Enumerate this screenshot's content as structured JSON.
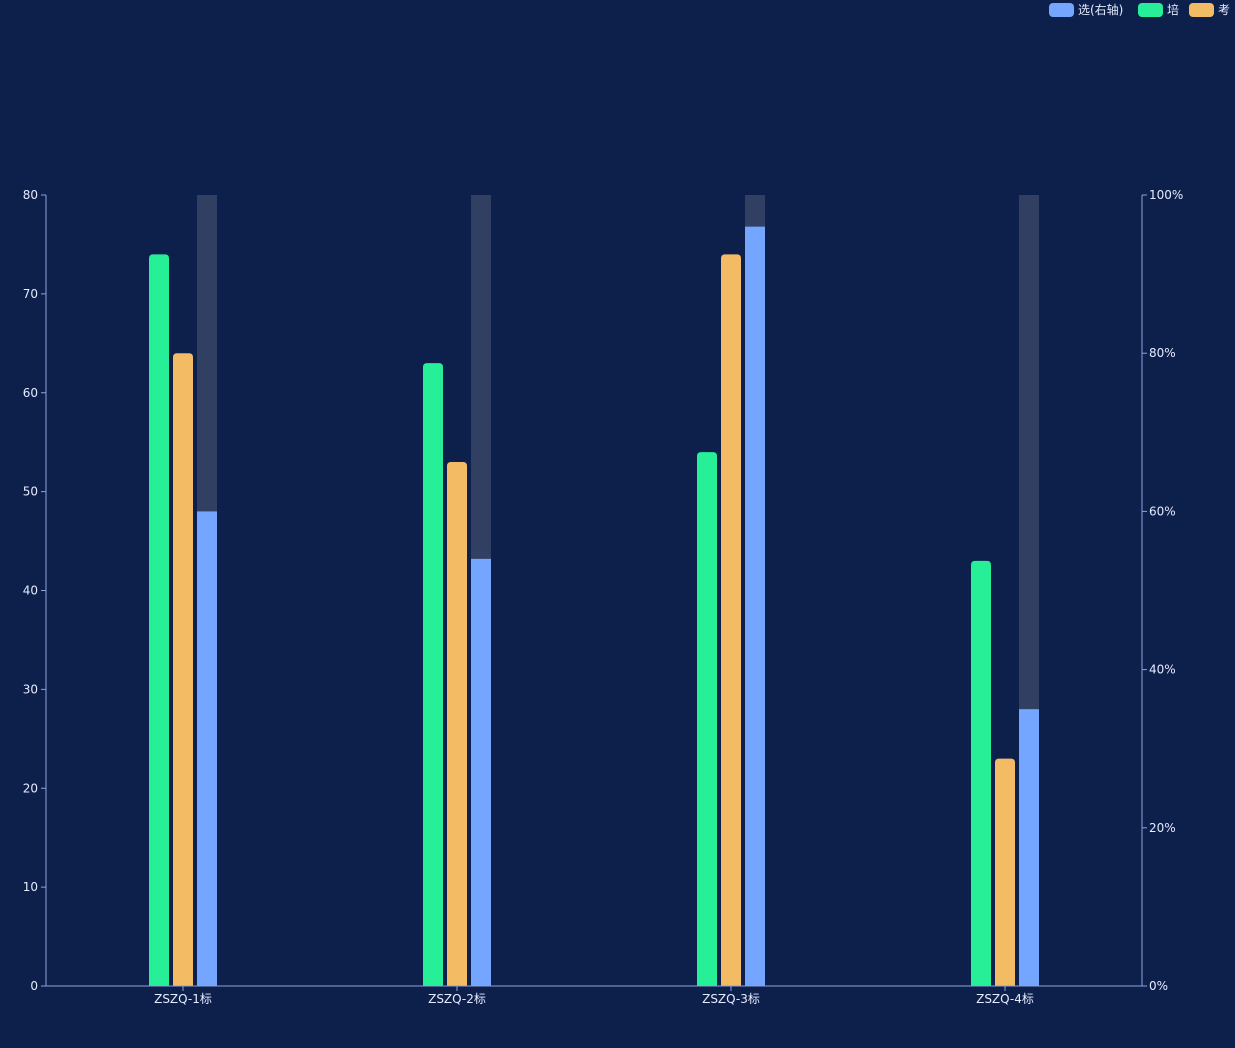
{
  "chart_data": {
    "type": "bar",
    "categories": [
      "ZSZQ-1标",
      "ZSZQ-2标",
      "ZSZQ-3标",
      "ZSZQ-4标"
    ],
    "series": [
      {
        "name": "培",
        "axis": "left",
        "color": "#27ef98",
        "values": [
          74,
          63,
          54,
          43
        ]
      },
      {
        "name": "考",
        "axis": "left",
        "color": "#f3bb64",
        "values": [
          64,
          53,
          74,
          23
        ]
      },
      {
        "name": "选(右轴)",
        "axis": "right",
        "color": "#74a6ff",
        "values": [
          60,
          54,
          96,
          35
        ],
        "background_color": "#313f63"
      }
    ],
    "legend": {
      "placement": "top-right",
      "order": [
        "选(右轴)",
        "培",
        "考"
      ]
    },
    "y_left": {
      "ylim": [
        0,
        80
      ],
      "ticks": [
        "0",
        "10",
        "20",
        "30",
        "40",
        "50",
        "60",
        "70",
        "80"
      ]
    },
    "y_right": {
      "ylim": [
        0,
        100
      ],
      "ticks": [
        "0%",
        "20%",
        "40%",
        "60%",
        "80%",
        "100%"
      ]
    },
    "grid": false,
    "axis_color": "#8fa3d8",
    "background": "#0d1f4b"
  }
}
